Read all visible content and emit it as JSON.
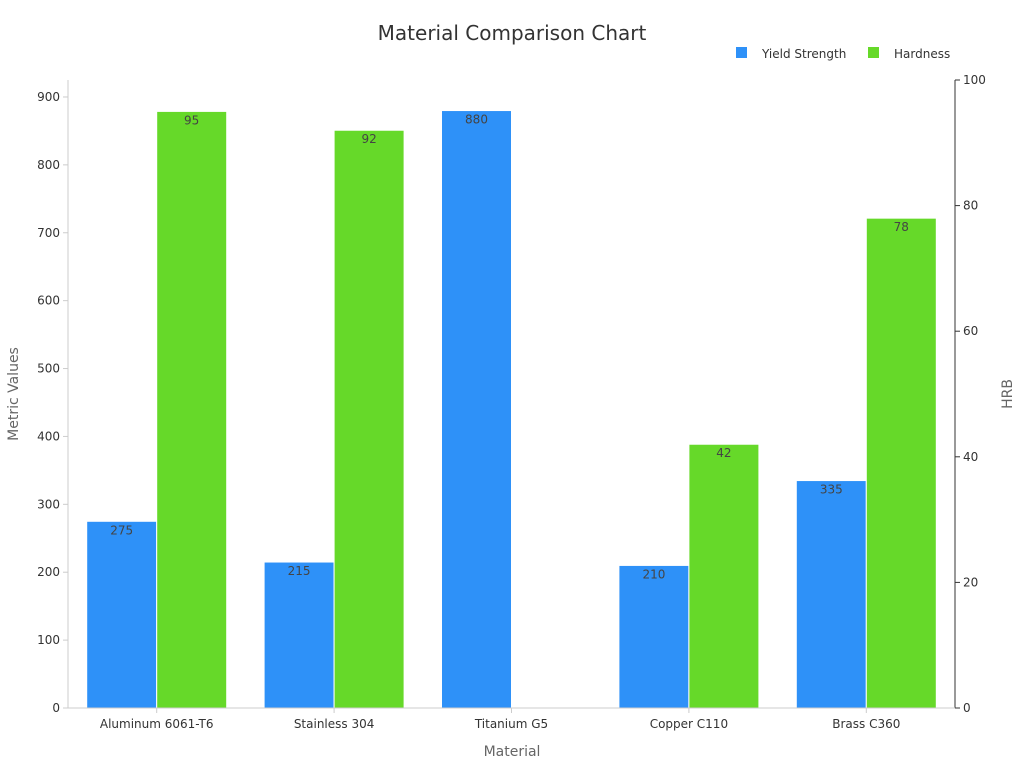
{
  "chart_data": {
    "type": "bar",
    "title": "Material Comparison Chart",
    "xlabel": "Material",
    "ylabel": "Metric Values",
    "y2label": "HRB",
    "categories": [
      "Aluminum 6061-T6",
      "Stainless 304",
      "Titanium G5",
      "Copper C110",
      "Brass C360"
    ],
    "series": [
      {
        "name": "Yield Strength",
        "axis": "left",
        "color": "#2e91f8",
        "values": [
          275,
          215,
          880,
          210,
          335
        ],
        "labels": [
          "275",
          "215",
          "880",
          "210",
          "335"
        ]
      },
      {
        "name": "Hardness",
        "axis": "right",
        "color": "#66d929",
        "values": [
          95,
          92,
          null,
          42,
          78
        ],
        "labels": [
          "95",
          "92",
          "",
          "42",
          "78"
        ]
      }
    ],
    "ylim": [
      0,
      925
    ],
    "y2lim": [
      0,
      100
    ],
    "yticks": [
      "0",
      "100",
      "200",
      "300",
      "400",
      "500",
      "600",
      "700",
      "800",
      "900"
    ],
    "y2ticks": [
      "0",
      "20",
      "40",
      "60",
      "80",
      "100"
    ],
    "legend": "top-right",
    "grid": false
  }
}
